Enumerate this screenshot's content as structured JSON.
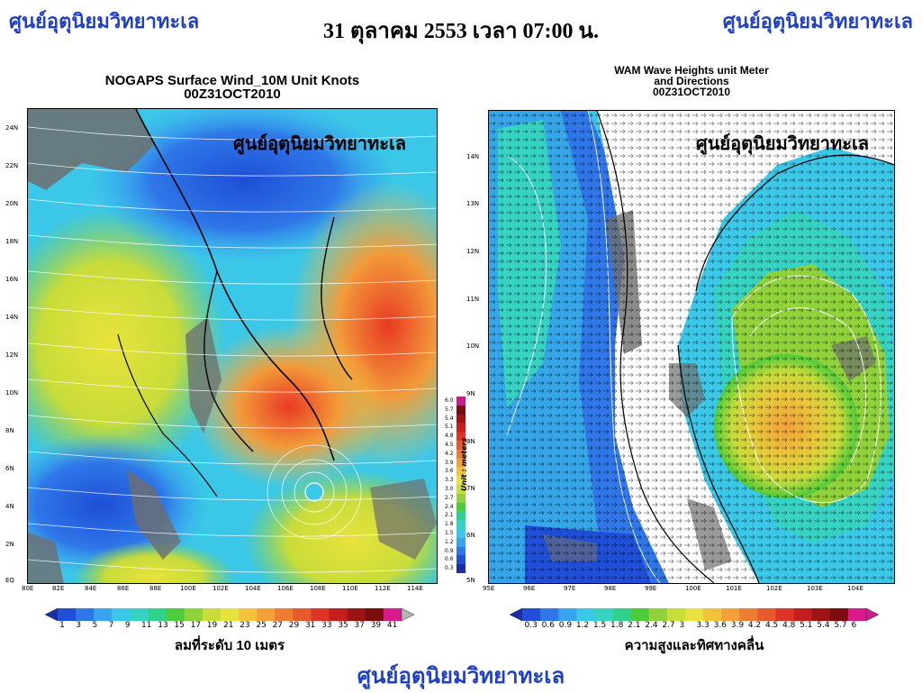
{
  "header": {
    "org_left": "ศูนย์อุตุนิยมวิทยาทะเล",
    "datetime": "31 ตุลาคม 2553 เวลา 07:00 น.",
    "org_right": "ศูนย์อุตุนิยมวิทยาทะเล"
  },
  "wind_map": {
    "title_line1": "NOGAPS Surface Wind_10M Unit Knots",
    "title_line2": "00Z31OCT2010",
    "watermark": "ศูนย์อุตุนิยมวิทยาทะเล",
    "lat_ticks": [
      "24N",
      "22N",
      "20N",
      "18N",
      "16N",
      "14N",
      "12N",
      "10N",
      "8N",
      "6N",
      "4N",
      "2N",
      "EQ"
    ],
    "lon_ticks": [
      "80E",
      "82E",
      "84E",
      "86E",
      "88E",
      "100E",
      "102E",
      "104E",
      "106E",
      "108E",
      "110E",
      "112E",
      "114E"
    ],
    "colorbar_values": [
      "1",
      "3",
      "5",
      "7",
      "9",
      "11",
      "13",
      "15",
      "17",
      "19",
      "21",
      "23",
      "25",
      "27",
      "29",
      "31",
      "33",
      "35",
      "37",
      "39",
      "41"
    ],
    "colorbar_colors": [
      "#1a2ea8",
      "#1e4fd6",
      "#2f77e8",
      "#3aa3ef",
      "#3bc7e8",
      "#36d3c2",
      "#2fd28a",
      "#4ccc3a",
      "#8fd23a",
      "#c8dc3a",
      "#e8e23c",
      "#f2c23a",
      "#f2a03a",
      "#ee7d34",
      "#e85a2e",
      "#dc3426",
      "#c41e1e",
      "#9c1414",
      "#7a0e0e",
      "#d81a8c",
      "#b4b4b4"
    ],
    "unit_label": "ลมที่ระดับ 10 เมตร"
  },
  "vertical_colorbar": {
    "unit_text": "Unit : meters",
    "values": [
      "6.0",
      "5.7",
      "5.4",
      "5.1",
      "4.8",
      "4.5",
      "4.2",
      "3.9",
      "3.6",
      "3.3",
      "3.0",
      "2.7",
      "2.4",
      "2.1",
      "1.8",
      "1.5",
      "1.2",
      "0.9",
      "0.6",
      "0.3"
    ],
    "colors": [
      "#c81e8c",
      "#7a0e0e",
      "#9c1414",
      "#c41e1e",
      "#dc3426",
      "#e85a2e",
      "#ee7d34",
      "#f2a03a",
      "#f2c23a",
      "#e8e23c",
      "#c8dc3a",
      "#8fd23a",
      "#4ccc3a",
      "#2fd28a",
      "#36d3c2",
      "#3bc7e8",
      "#3aa3ef",
      "#2f77e8",
      "#1e4fd6",
      "#1a2ea8"
    ]
  },
  "wave_map": {
    "title_line1": "WAM Wave Heights unit Meter",
    "title_line2": "and Directions",
    "title_line3": "00Z31OCT2010",
    "watermark": "ศูนย์อุตุนิยมวิทยาทะเล",
    "lat_ticks": [
      "14N",
      "13N",
      "12N",
      "11N",
      "10N",
      "9N",
      "8N",
      "7N",
      "6N",
      "5N"
    ],
    "lon_ticks": [
      "95E",
      "96E",
      "97E",
      "98E",
      "99E",
      "100E",
      "101E",
      "102E",
      "103E",
      "104E"
    ],
    "colorbar_values": [
      "0.3",
      "0.6",
      "0.9",
      "1.2",
      "1.5",
      "1.8",
      "2.1",
      "2.4",
      "2.7",
      "3",
      "3.3",
      "3.6",
      "3.9",
      "4.2",
      "4.5",
      "4.8",
      "5.1",
      "5.4",
      "5.7",
      "6"
    ],
    "colorbar_colors": [
      "#1a2ea8",
      "#1e4fd6",
      "#2f77e8",
      "#3aa3ef",
      "#3bc7e8",
      "#36d3c2",
      "#2fd28a",
      "#4ccc3a",
      "#8fd23a",
      "#c8dc3a",
      "#e8e23c",
      "#f2c23a",
      "#f2a03a",
      "#ee7d34",
      "#e85a2e",
      "#dc3426",
      "#c41e1e",
      "#9c1414",
      "#7a0e0e",
      "#d81a8c",
      "#c81e8c"
    ],
    "unit_label": "ความสูงและทิศทางคลื่น"
  },
  "footer": {
    "org": "ศูนย์อุตุนิยมวิทยาทะเล"
  }
}
